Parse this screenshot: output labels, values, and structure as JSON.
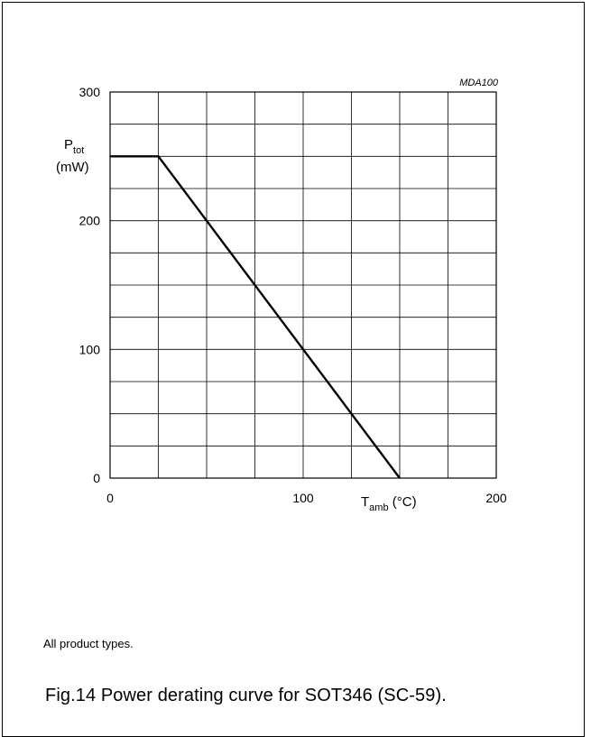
{
  "figure_code": "MDA100",
  "note": "All product types.",
  "caption": "Fig.14  Power derating curve for SOT346 (SC-59).",
  "ylabel": {
    "main": "P",
    "sub": "tot",
    "unit": "(mW)"
  },
  "xlabel": {
    "main": "T",
    "sub": "amb",
    "unit": " (°C)"
  },
  "chart_data": {
    "type": "line",
    "xlim": [
      0,
      200
    ],
    "ylim": [
      0,
      300
    ],
    "x_ticks": [
      0,
      100,
      200
    ],
    "y_ticks": [
      0,
      100,
      200,
      300
    ],
    "x_tick_labels": [
      "0",
      "100",
      "200"
    ],
    "y_tick_labels": [
      "0",
      "100",
      "200",
      "300"
    ],
    "x_grid_step": 25,
    "y_grid_step": 25,
    "grid": true,
    "series": [
      {
        "x": [
          0,
          25,
          150
        ],
        "y": [
          250,
          250,
          0
        ]
      }
    ]
  }
}
